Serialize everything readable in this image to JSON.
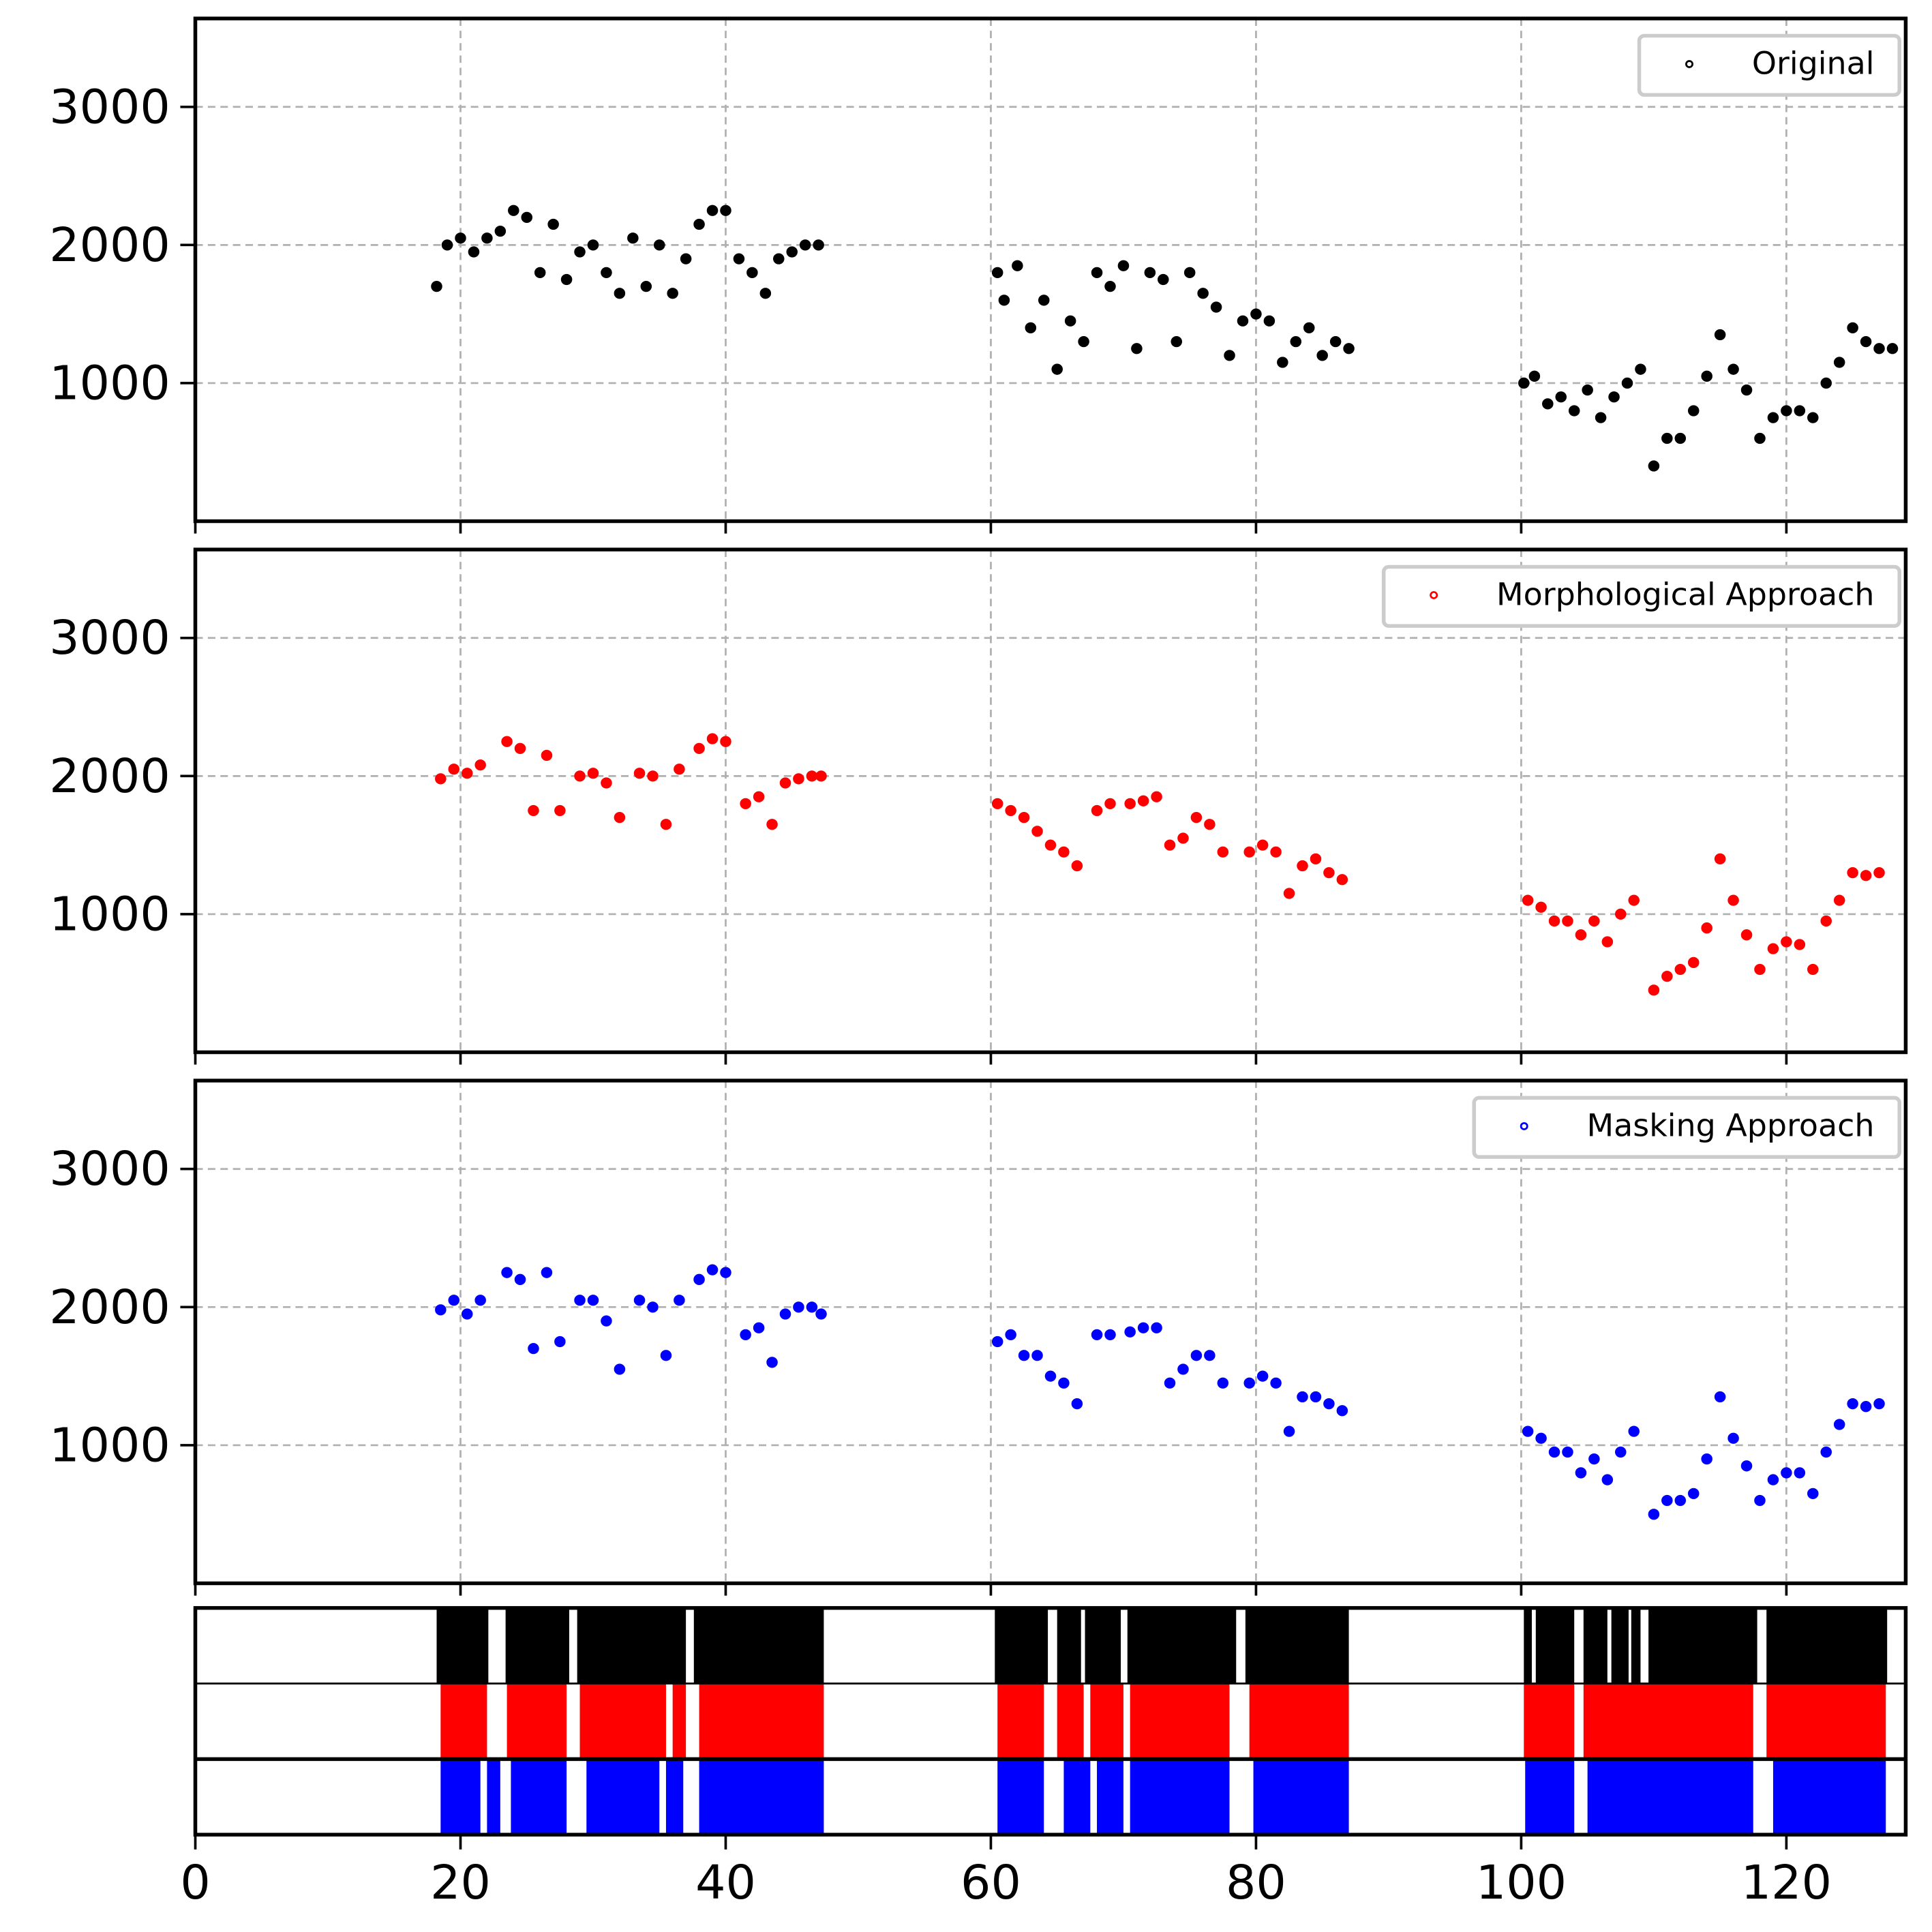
{
  "chart_data": [
    {
      "type": "scatter",
      "xlim": [
        0,
        129
      ],
      "ylim": [
        0,
        3640
      ],
      "xticks": [
        0,
        20,
        40,
        60,
        80,
        100,
        120
      ],
      "yticks": [
        1000,
        2000,
        3000
      ],
      "grid": true,
      "legend": "upper right",
      "series": [
        {
          "name": "Original",
          "color": "#000000",
          "x": [
            18.2,
            19,
            20,
            21,
            22,
            23,
            24,
            25,
            26,
            27,
            28,
            29,
            30,
            31,
            32,
            33,
            34,
            35,
            36,
            37,
            38,
            39,
            40,
            41,
            42,
            43,
            44,
            45,
            46,
            47,
            60.5,
            61,
            62,
            63,
            64,
            65,
            66,
            67,
            68,
            69,
            70,
            71,
            72,
            73,
            74,
            75,
            76,
            77,
            78,
            79,
            80,
            81,
            82,
            83,
            84,
            85,
            86,
            87,
            100.2,
            101,
            102,
            103,
            104,
            105,
            106,
            107,
            108,
            109,
            110,
            111,
            112,
            113,
            114,
            115,
            116,
            117,
            118,
            119,
            120,
            121,
            122,
            123,
            124,
            125,
            126,
            127,
            128
          ],
          "values": [
            1700,
            2000,
            2050,
            1950,
            2050,
            2100,
            2250,
            2200,
            1800,
            2150,
            1750,
            1950,
            2000,
            1800,
            1650,
            2050,
            1700,
            2000,
            1650,
            1900,
            2150,
            2250,
            2250,
            1900,
            1800,
            1650,
            1900,
            1950,
            2000,
            2000,
            1800,
            1600,
            1850,
            1400,
            1600,
            1100,
            1450,
            1300,
            1800,
            1700,
            1850,
            1250,
            1800,
            1750,
            1300,
            1800,
            1650,
            1550,
            1200,
            1450,
            1500,
            1450,
            1150,
            1300,
            1400,
            1200,
            1300,
            1250,
            1000,
            1050,
            850,
            900,
            800,
            950,
            750,
            900,
            1000,
            1100,
            400,
            600,
            600,
            800,
            1050,
            1350,
            1100,
            950,
            600,
            750,
            800,
            800,
            750,
            1000,
            1150,
            1400,
            1300,
            1250,
            1250
          ]
        }
      ]
    },
    {
      "type": "scatter",
      "xlim": [
        0,
        129
      ],
      "ylim": [
        0,
        3640
      ],
      "xticks": [
        0,
        20,
        40,
        60,
        80,
        100,
        120
      ],
      "yticks": [
        1000,
        2000,
        3000
      ],
      "grid": true,
      "legend": "upper right",
      "series": [
        {
          "name": "Morphological Approach",
          "color": "#ff0000",
          "x": [
            18.5,
            19.5,
            20.5,
            21.5,
            23.5,
            24.5,
            25.5,
            26.5,
            27.5,
            29,
            30,
            31,
            32,
            33.5,
            34.5,
            35.5,
            36.5,
            38,
            39,
            40,
            41.5,
            42.5,
            43.5,
            44.5,
            45.5,
            46.5,
            47.2,
            60.5,
            61.5,
            62.5,
            63.5,
            64.5,
            65.5,
            66.5,
            68,
            69,
            70.5,
            71.5,
            72.5,
            73.5,
            74.5,
            75.5,
            76.5,
            77.5,
            79.5,
            80.5,
            81.5,
            82.5,
            83.5,
            84.5,
            85.5,
            86.5,
            100.5,
            101.5,
            102.5,
            103.5,
            104.5,
            105.5,
            106.5,
            107.5,
            108.5,
            110,
            111,
            112,
            113,
            114,
            115,
            116,
            117,
            118,
            119,
            120,
            121,
            122,
            123,
            124,
            125,
            126,
            127
          ],
          "values": [
            1980,
            2050,
            2020,
            2080,
            2250,
            2200,
            1750,
            2150,
            1750,
            2000,
            2020,
            1950,
            1700,
            2020,
            2000,
            1650,
            2050,
            2200,
            2270,
            2250,
            1800,
            1850,
            1650,
            1950,
            1980,
            2000,
            2000,
            1800,
            1750,
            1700,
            1600,
            1500,
            1450,
            1350,
            1750,
            1800,
            1800,
            1820,
            1850,
            1500,
            1550,
            1700,
            1650,
            1450,
            1450,
            1500,
            1450,
            1150,
            1350,
            1400,
            1300,
            1250,
            1100,
            1050,
            950,
            950,
            850,
            950,
            800,
            1000,
            1100,
            450,
            550,
            600,
            650,
            900,
            1400,
            1100,
            850,
            600,
            750,
            800,
            780,
            600,
            950,
            1100,
            1300,
            1280,
            1300
          ]
        }
      ]
    },
    {
      "type": "scatter",
      "xlim": [
        0,
        129
      ],
      "ylim": [
        0,
        3640
      ],
      "xticks": [
        0,
        20,
        40,
        60,
        80,
        100,
        120
      ],
      "yticks": [
        1000,
        2000,
        3000
      ],
      "grid": true,
      "legend": "upper right",
      "series": [
        {
          "name": "Masking Approach",
          "color": "#0000ff",
          "x": [
            18.5,
            19.5,
            20.5,
            21.5,
            23.5,
            24.5,
            25.5,
            26.5,
            27.5,
            29,
            30,
            31,
            32,
            33.5,
            34.5,
            35.5,
            36.5,
            38,
            39,
            40,
            41.5,
            42.5,
            43.5,
            44.5,
            45.5,
            46.5,
            47.2,
            60.5,
            61.5,
            62.5,
            63.5,
            64.5,
            65.5,
            66.5,
            68,
            69,
            70.5,
            71.5,
            72.5,
            73.5,
            74.5,
            75.5,
            76.5,
            77.5,
            79.5,
            80.5,
            81.5,
            82.5,
            83.5,
            84.5,
            85.5,
            86.5,
            100.5,
            101.5,
            102.5,
            103.5,
            104.5,
            105.5,
            106.5,
            107.5,
            108.5,
            110,
            111,
            112,
            113,
            114,
            115,
            116,
            117,
            118,
            119,
            120,
            121,
            122,
            123,
            124,
            125,
            126,
            127
          ],
          "values": [
            1980,
            2050,
            1950,
            2050,
            2250,
            2200,
            1700,
            2250,
            1750,
            2050,
            2050,
            1900,
            1550,
            2050,
            2000,
            1650,
            2050,
            2200,
            2270,
            2250,
            1800,
            1850,
            1600,
            1950,
            2000,
            2000,
            1950,
            1750,
            1800,
            1650,
            1650,
            1500,
            1450,
            1300,
            1800,
            1800,
            1820,
            1850,
            1850,
            1450,
            1550,
            1650,
            1650,
            1450,
            1450,
            1500,
            1450,
            1100,
            1350,
            1350,
            1300,
            1250,
            1100,
            1050,
            950,
            950,
            800,
            900,
            750,
            950,
            1100,
            500,
            600,
            600,
            650,
            900,
            1350,
            1050,
            850,
            600,
            750,
            800,
            800,
            650,
            950,
            1150,
            1300,
            1280,
            1300
          ]
        }
      ]
    },
    {
      "type": "broken_barh",
      "xlim": [
        0,
        129
      ],
      "xticks": [
        0,
        20,
        40,
        60,
        80,
        100,
        120
      ],
      "rows": [
        {
          "color": "#000000",
          "intervals": [
            [
              18.2,
              22.1
            ],
            [
              23.4,
              28.2
            ],
            [
              28.8,
              37
            ],
            [
              37.6,
              47.4
            ],
            [
              60.3,
              64.3
            ],
            [
              65,
              66.8
            ],
            [
              67.1,
              69.8
            ],
            [
              70.3,
              78.5
            ],
            [
              79.2,
              87
            ],
            [
              100.2,
              100.8
            ],
            [
              101.1,
              104
            ],
            [
              104.7,
              106.5
            ],
            [
              106.8,
              108.1
            ],
            [
              108.3,
              109
            ],
            [
              109.6,
              117.8
            ],
            [
              118.5,
              127.6
            ]
          ]
        },
        {
          "color": "#ff0000",
          "intervals": [
            [
              18.5,
              22
            ],
            [
              23.5,
              28
            ],
            [
              29,
              35.5
            ],
            [
              36,
              37
            ],
            [
              38,
              47.4
            ],
            [
              60.5,
              64
            ],
            [
              65,
              67
            ],
            [
              67.5,
              70
            ],
            [
              70.5,
              78
            ],
            [
              79.5,
              87
            ],
            [
              100.2,
              104
            ],
            [
              104.7,
              117.5
            ],
            [
              118.5,
              127.5
            ]
          ]
        },
        {
          "color": "#0000ff",
          "intervals": [
            [
              18.5,
              21.5
            ],
            [
              22,
              23
            ],
            [
              23.8,
              28
            ],
            [
              29.5,
              35
            ],
            [
              35.5,
              36.8
            ],
            [
              38,
              47.4
            ],
            [
              60.5,
              64
            ],
            [
              65.5,
              67.5
            ],
            [
              68,
              70
            ],
            [
              70.5,
              78
            ],
            [
              79.8,
              87
            ],
            [
              100.3,
              104
            ],
            [
              105,
              117.5
            ],
            [
              119,
              127.5
            ]
          ]
        }
      ]
    }
  ]
}
